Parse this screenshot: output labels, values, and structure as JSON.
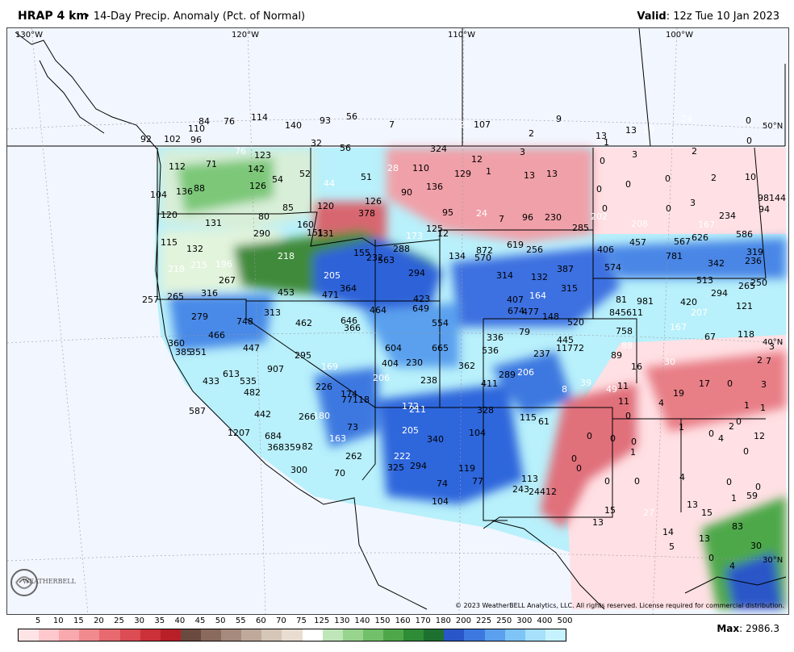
{
  "header": {
    "title": "HRAP 4 km",
    "subtitle": "• 14-Day Precip. Anomaly (Pct. of Normal)",
    "valid_label": "Valid",
    "valid_value": ": 12z Tue 10 Jan 2023"
  },
  "map": {
    "longitudes": [
      "130°W",
      "120°W",
      "110°W",
      "100°W"
    ],
    "latitudes": [
      "50°N",
      "40°N",
      "30°N"
    ],
    "values": [
      {
        "t": "84"
      },
      {
        "t": "76"
      },
      {
        "t": "114"
      },
      {
        "t": "140"
      },
      {
        "t": "93"
      },
      {
        "t": "56"
      },
      {
        "t": "7"
      },
      {
        "t": "20",
        "w": true
      },
      {
        "t": "107"
      },
      {
        "t": "9"
      },
      {
        "t": "92"
      },
      {
        "t": "102"
      },
      {
        "t": "110"
      },
      {
        "t": "96"
      },
      {
        "t": "2"
      },
      {
        "t": "13"
      },
      {
        "t": "1"
      },
      {
        "t": "13"
      },
      {
        "t": "29",
        "w": true
      },
      {
        "t": "24",
        "w": true
      },
      {
        "t": "32"
      },
      {
        "t": "56"
      },
      {
        "t": "324"
      },
      {
        "t": "123"
      },
      {
        "t": "76",
        "w": true
      },
      {
        "t": "71"
      },
      {
        "t": "112"
      },
      {
        "t": "142"
      },
      {
        "t": "52"
      },
      {
        "t": "51"
      },
      {
        "t": "28",
        "w": true
      },
      {
        "t": "110"
      },
      {
        "t": "129"
      },
      {
        "t": "12"
      },
      {
        "t": "3"
      },
      {
        "t": "0"
      },
      {
        "t": "3"
      },
      {
        "t": "0"
      },
      {
        "t": "2"
      },
      {
        "t": "0"
      },
      {
        "t": "104"
      },
      {
        "t": "136"
      },
      {
        "t": "88"
      },
      {
        "t": "126"
      },
      {
        "t": "54"
      },
      {
        "t": "44",
        "w": true
      },
      {
        "t": "90"
      },
      {
        "t": "136"
      },
      {
        "t": "1"
      },
      {
        "t": "13"
      },
      {
        "t": "13"
      },
      {
        "t": "0"
      },
      {
        "t": "0"
      },
      {
        "t": "0"
      },
      {
        "t": "2"
      },
      {
        "t": "10"
      },
      {
        "t": "0"
      },
      {
        "t": "0"
      },
      {
        "t": "3"
      },
      {
        "t": "98144"
      },
      {
        "t": "120"
      },
      {
        "t": "85"
      },
      {
        "t": "120"
      },
      {
        "t": "126"
      },
      {
        "t": "95"
      },
      {
        "t": "24",
        "w": true
      },
      {
        "t": "7"
      },
      {
        "t": "96"
      },
      {
        "t": "230"
      },
      {
        "t": "202",
        "w": true
      },
      {
        "t": "234"
      },
      {
        "t": "94"
      },
      {
        "t": "131"
      },
      {
        "t": "80"
      },
      {
        "t": "160"
      },
      {
        "t": "378"
      },
      {
        "t": "125"
      },
      {
        "t": "285"
      },
      {
        "t": "208",
        "w": true
      },
      {
        "t": "167",
        "w": true
      },
      {
        "t": "115"
      },
      {
        "t": "290"
      },
      {
        "t": "151"
      },
      {
        "t": "131"
      },
      {
        "t": "173",
        "w": true
      },
      {
        "t": "12"
      },
      {
        "t": "626"
      },
      {
        "t": "586"
      },
      {
        "t": "132"
      },
      {
        "t": "218",
        "w": true
      },
      {
        "t": "155"
      },
      {
        "t": "288"
      },
      {
        "t": "134"
      },
      {
        "t": "872"
      },
      {
        "t": "619"
      },
      {
        "t": "256"
      },
      {
        "t": "406"
      },
      {
        "t": "457"
      },
      {
        "t": "567"
      },
      {
        "t": "319"
      },
      {
        "t": "218",
        "w": true
      },
      {
        "t": "215",
        "w": true
      },
      {
        "t": "196",
        "w": true
      },
      {
        "t": "232"
      },
      {
        "t": "563"
      },
      {
        "t": "570"
      },
      {
        "t": "781"
      },
      {
        "t": "342"
      },
      {
        "t": "236"
      },
      {
        "t": "267"
      },
      {
        "t": "205",
        "w": true
      },
      {
        "t": "364"
      },
      {
        "t": "294"
      },
      {
        "t": "314"
      },
      {
        "t": "132"
      },
      {
        "t": "387"
      },
      {
        "t": "574"
      },
      {
        "t": "513"
      },
      {
        "t": "257"
      },
      {
        "t": "265"
      },
      {
        "t": "316"
      },
      {
        "t": "453"
      },
      {
        "t": "471"
      },
      {
        "t": "423"
      },
      {
        "t": "315"
      },
      {
        "t": "985"
      },
      {
        "t": "265"
      },
      {
        "t": "250"
      },
      {
        "t": "464"
      },
      {
        "t": "649"
      },
      {
        "t": "407"
      },
      {
        "t": "164",
        "w": true
      },
      {
        "t": "81"
      },
      {
        "t": "981"
      },
      {
        "t": "420"
      },
      {
        "t": "294"
      },
      {
        "t": "121"
      },
      {
        "t": "279"
      },
      {
        "t": "313"
      },
      {
        "t": "748"
      },
      {
        "t": "462"
      },
      {
        "t": "646"
      },
      {
        "t": "674"
      },
      {
        "t": "477"
      },
      {
        "t": "845611"
      },
      {
        "t": "207",
        "w": true
      },
      {
        "t": "366"
      },
      {
        "t": "554"
      },
      {
        "t": "148"
      },
      {
        "t": "520"
      },
      {
        "t": "758"
      },
      {
        "t": "167",
        "w": true
      },
      {
        "t": "118"
      },
      {
        "t": "466"
      },
      {
        "t": "79"
      },
      {
        "t": "67"
      },
      {
        "t": "360"
      },
      {
        "t": "447"
      },
      {
        "t": "604"
      },
      {
        "t": "665"
      },
      {
        "t": "336"
      },
      {
        "t": "445"
      },
      {
        "t": "88",
        "w": true
      },
      {
        "t": "3"
      },
      {
        "t": "385"
      },
      {
        "t": "351"
      },
      {
        "t": "295"
      },
      {
        "t": "536"
      },
      {
        "t": "237"
      },
      {
        "t": "11772"
      },
      {
        "t": "89"
      },
      {
        "t": "2"
      },
      {
        "t": "7"
      },
      {
        "t": "907"
      },
      {
        "t": "169",
        "w": true
      },
      {
        "t": "404"
      },
      {
        "t": "230"
      },
      {
        "t": "362"
      },
      {
        "t": "289"
      },
      {
        "t": "206",
        "w": true
      },
      {
        "t": "16"
      },
      {
        "t": "30",
        "w": true
      },
      {
        "t": "613"
      },
      {
        "t": "433"
      },
      {
        "t": "535"
      },
      {
        "t": "206",
        "w": true
      },
      {
        "t": "238"
      },
      {
        "t": "411"
      },
      {
        "t": "39",
        "w": true
      },
      {
        "t": "8",
        "w": true
      },
      {
        "t": "49",
        "w": true
      },
      {
        "t": "11"
      },
      {
        "t": "17"
      },
      {
        "t": "0"
      },
      {
        "t": "3"
      },
      {
        "t": "482"
      },
      {
        "t": "226"
      },
      {
        "t": "174"
      },
      {
        "t": "77118"
      },
      {
        "t": "172",
        "w": true
      },
      {
        "t": "19"
      },
      {
        "t": "11"
      },
      {
        "t": "4"
      },
      {
        "t": "1"
      },
      {
        "t": "1"
      },
      {
        "t": "587"
      },
      {
        "t": "211",
        "w": true
      },
      {
        "t": "328"
      },
      {
        "t": "115"
      },
      {
        "t": "61"
      },
      {
        "t": "0"
      },
      {
        "t": "0"
      },
      {
        "t": "442"
      },
      {
        "t": "180",
        "w": true
      },
      {
        "t": "266"
      },
      {
        "t": "73"
      },
      {
        "t": "205",
        "w": true
      },
      {
        "t": "104"
      },
      {
        "t": "0"
      },
      {
        "t": "0"
      },
      {
        "t": "4"
      },
      {
        "t": "12"
      },
      {
        "t": "1207"
      },
      {
        "t": "684"
      },
      {
        "t": "163",
        "w": true
      },
      {
        "t": "340"
      },
      {
        "t": "0"
      },
      {
        "t": "1"
      },
      {
        "t": "0"
      },
      {
        "t": "2"
      },
      {
        "t": "368359"
      },
      {
        "t": "82"
      },
      {
        "t": "262"
      },
      {
        "t": "222",
        "w": true
      },
      {
        "t": "1"
      },
      {
        "t": "0"
      },
      {
        "t": "300"
      },
      {
        "t": "70"
      },
      {
        "t": "325"
      },
      {
        "t": "294"
      },
      {
        "t": "119"
      },
      {
        "t": "0"
      },
      {
        "t": "0"
      },
      {
        "t": "0"
      },
      {
        "t": "0"
      },
      {
        "t": "4"
      },
      {
        "t": "0"
      },
      {
        "t": "74"
      },
      {
        "t": "77"
      },
      {
        "t": "113"
      },
      {
        "t": "0"
      },
      {
        "t": "59"
      },
      {
        "t": "104"
      },
      {
        "t": "243"
      },
      {
        "t": "24412"
      },
      {
        "t": "1"
      },
      {
        "t": "15"
      },
      {
        "t": "13"
      },
      {
        "t": "15"
      },
      {
        "t": "27",
        "w": true
      },
      {
        "t": "13"
      },
      {
        "t": "83"
      },
      {
        "t": "14"
      },
      {
        "t": "13"
      },
      {
        "t": "30"
      },
      {
        "t": "5"
      },
      {
        "t": "0"
      },
      {
        "t": "4"
      }
    ]
  },
  "colorbar": {
    "labels": [
      "5",
      "10",
      "15",
      "20",
      "25",
      "30",
      "35",
      "40",
      "45",
      "50",
      "55",
      "60",
      "70",
      "75",
      "125",
      "130",
      "140",
      "150",
      "160",
      "170",
      "180",
      "200",
      "225",
      "250",
      "300",
      "400",
      "500"
    ],
    "colors": [
      "#ffe4e6",
      "#ffc8cc",
      "#f9a9ae",
      "#f08a8f",
      "#e66a70",
      "#db4c54",
      "#cc3038",
      "#b81f27",
      "#6b4a3f",
      "#8a6a5d",
      "#a68a7d",
      "#bfa99b",
      "#d6c6b8",
      "#e9ddd2",
      "#ffffff",
      "#bfe6b8",
      "#98d48e",
      "#72c06a",
      "#4ea84a",
      "#2f8c36",
      "#1e7030",
      "#2956c8",
      "#3d78e0",
      "#5aa0ee",
      "#7ec4f6",
      "#a6e0fa",
      "#c6f2ff"
    ]
  },
  "max_label": "Max",
  "max_value": ": 2986.3",
  "copyright": "© 2023 WeatherBELL Analytics, LLC. All rights reserved. License required for commercial distribution.",
  "logo_text": "WEATHERBELL"
}
